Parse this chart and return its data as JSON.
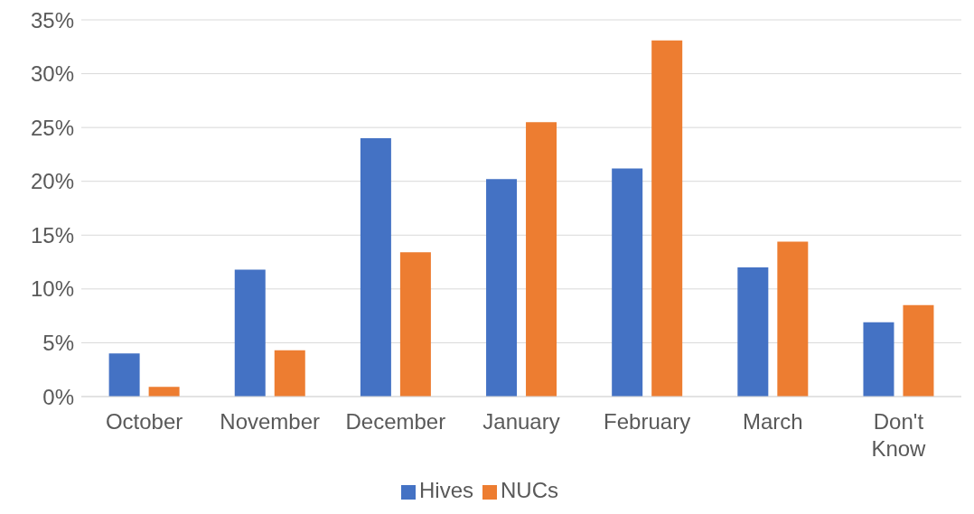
{
  "chart_data": {
    "type": "bar",
    "categories": [
      "October",
      "November",
      "December",
      "January",
      "February",
      "March",
      "Don't Know"
    ],
    "series": [
      {
        "name": "Hives",
        "color": "#4472c4",
        "values": [
          4.0,
          11.8,
          24.0,
          20.2,
          21.2,
          12.0,
          6.9
        ]
      },
      {
        "name": "NUCs",
        "color": "#ed7d31",
        "values": [
          0.9,
          4.3,
          13.4,
          25.5,
          33.1,
          14.4,
          8.5
        ]
      }
    ],
    "ylim": [
      0,
      35
    ],
    "yticks": [
      {
        "value": 0,
        "label": "0%"
      },
      {
        "value": 5,
        "label": "5%"
      },
      {
        "value": 10,
        "label": "10%"
      },
      {
        "value": 15,
        "label": "15%"
      },
      {
        "value": 20,
        "label": "20%"
      },
      {
        "value": 25,
        "label": "25%"
      },
      {
        "value": 30,
        "label": "30%"
      },
      {
        "value": 35,
        "label": "35%"
      }
    ],
    "grid": "y",
    "legend": "bottom"
  }
}
